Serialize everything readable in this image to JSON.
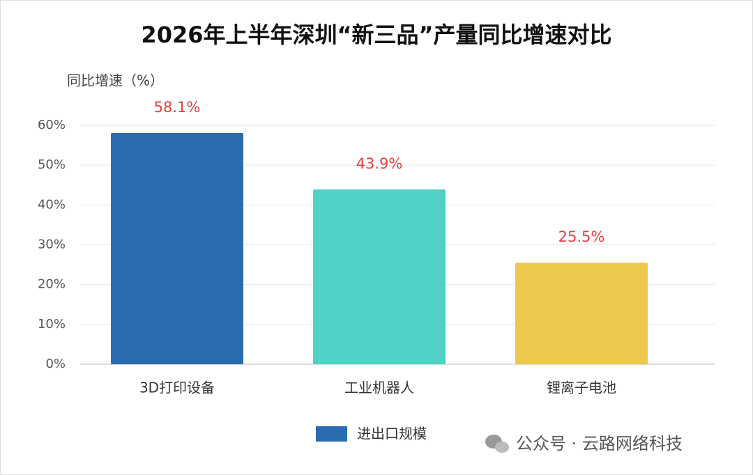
{
  "chart_data": {
    "type": "bar",
    "title": "2026年上半年深圳“新三品”产量同比增速对比",
    "y_axis_label": "同比增速（%）",
    "categories": [
      "3D打印设备",
      "工业机器人",
      "锂离子电池"
    ],
    "series": [
      {
        "name": "进出口规模",
        "color": "#2b6cb0",
        "colors": [
          "#2b6cb0",
          "#4fd1c5",
          "#ecc94b"
        ],
        "values": [
          58.1,
          43.9,
          25.5
        ],
        "value_labels": [
          "58.1%",
          "43.9%",
          "25.5%"
        ]
      }
    ],
    "ylim": [
      0,
      60
    ],
    "yticks": [
      {
        "value": 0,
        "label": "0%"
      },
      {
        "value": 10,
        "label": "10%"
      },
      {
        "value": 20,
        "label": "20%"
      },
      {
        "value": 30,
        "label": "30%"
      },
      {
        "value": 40,
        "label": "40%"
      },
      {
        "value": 50,
        "label": "50%"
      },
      {
        "value": 60,
        "label": "60%"
      }
    ],
    "grid": true,
    "legend": "bottom",
    "value_label_color": "#e53e3e",
    "watermark": "公众号 · 云路网络科技"
  }
}
